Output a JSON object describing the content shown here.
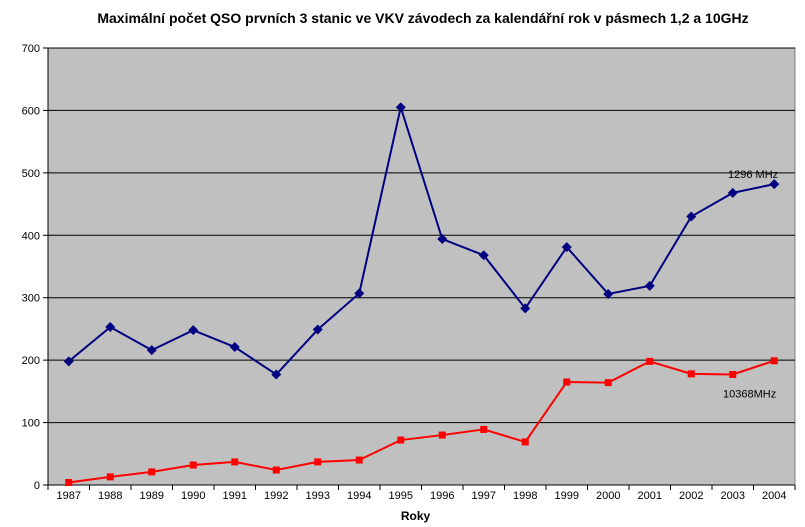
{
  "chart_data": {
    "type": "line",
    "title": "Maximální počet QSO prvních 3 stanic ve VKV závodech za kalendářní rok v pásmech 1,2 a 10GHz",
    "xlabel": "Roky",
    "ylabel": "",
    "ylim": [
      0,
      700
    ],
    "yticks": [
      0,
      100,
      200,
      300,
      400,
      500,
      600,
      700
    ],
    "grid": true,
    "legend": "none",
    "categories": [
      "1987",
      "1988",
      "1989",
      "1990",
      "1991",
      "1992",
      "1993",
      "1994",
      "1995",
      "1996",
      "1997",
      "1998",
      "1999",
      "2000",
      "2001",
      "2002",
      "2003",
      "2004"
    ],
    "series": [
      {
        "name": "1296 MHz",
        "color": "#000080",
        "marker": "diamond",
        "values": [
          198,
          253,
          216,
          248,
          221,
          177,
          249,
          307,
          605,
          394,
          368,
          283,
          381,
          306,
          319,
          430,
          468,
          482
        ]
      },
      {
        "name": "10368MHz",
        "color": "#ff0000",
        "marker": "square",
        "values": [
          4,
          13,
          21,
          32,
          37,
          24,
          37,
          40,
          72,
          80,
          89,
          69,
          165,
          164,
          198,
          178,
          177,
          199
        ]
      }
    ],
    "plot_background": "#c0c0c0"
  }
}
